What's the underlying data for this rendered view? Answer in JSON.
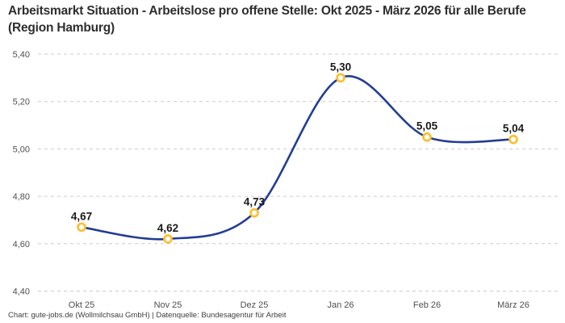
{
  "header": {
    "title": "Arbeitsmarkt Situation - Arbeitslose pro offene Stelle: Okt 2025 - März 2026 für alle Berufe (Region Hamburg)"
  },
  "footer": {
    "attribution": "Chart: gute-jobs.de (Wollmilchsau GmbH) | Datenquelle: Bundesagentur für Arbeit"
  },
  "chart_data": {
    "type": "line",
    "title": "Arbeitsmarkt Situation - Arbeitslose pro offene Stelle: Okt 2025 - März 2026 für alle Berufe (Region Hamburg)",
    "categories": [
      "Okt 25",
      "Nov 25",
      "Dez 25",
      "Jan 26",
      "Feb 26",
      "März 26"
    ],
    "series": [
      {
        "name": "Arbeitslose pro offene Stelle",
        "values": [
          4.67,
          4.62,
          4.73,
          5.3,
          5.05,
          5.04
        ],
        "value_labels": [
          "4,67",
          "4,62",
          "4,73",
          "5,30",
          "5,05",
          "5,04"
        ]
      }
    ],
    "xlabel": "",
    "ylabel": "",
    "ylim": [
      4.4,
      5.4
    ],
    "y_ticks": [
      {
        "value": 5.4,
        "label": "5,40"
      },
      {
        "value": 5.2,
        "label": "5,20"
      },
      {
        "value": 5.0,
        "label": "5,00"
      },
      {
        "value": 4.8,
        "label": "4,80"
      },
      {
        "value": 4.6,
        "label": "4,60"
      },
      {
        "value": 4.4,
        "label": "4,40"
      }
    ],
    "grid": "horizontal-dashed",
    "legend": "none",
    "line_style": "smooth-spline",
    "colors": {
      "line": "#233d94",
      "marker_stroke": "#fdbe2c",
      "marker_fill": "#ffffff",
      "grid": "#cccccc",
      "title_text": "#2e2e2e",
      "tick_text": "#4f4f4f",
      "value_label_text": "#1a1a1a",
      "footer_text": "#3d3d3d",
      "background": "#ffffff"
    }
  }
}
